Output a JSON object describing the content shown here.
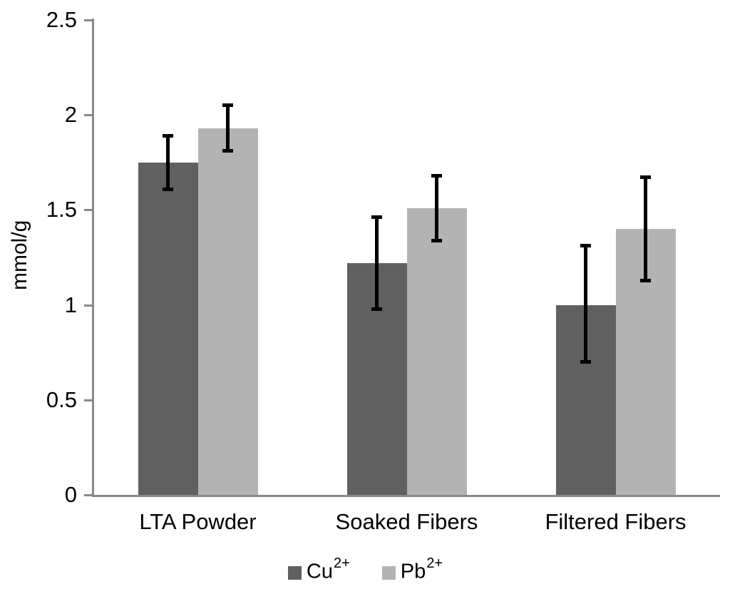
{
  "chart_data": {
    "type": "bar",
    "title": "",
    "xlabel": "",
    "ylabel": "mmol/g",
    "ylim": [
      0,
      2.5
    ],
    "y_ticks": [
      0,
      0.5,
      1,
      1.5,
      2,
      2.5
    ],
    "grid": false,
    "legend_position": "bottom",
    "categories": [
      "LTA Powder",
      "Soaked Fibers",
      "Filtered Fibers"
    ],
    "series": [
      {
        "name": "Cu",
        "superscript": "2+",
        "color": "#606060",
        "values": [
          1.75,
          1.22,
          1.0
        ],
        "error_low": [
          1.6,
          0.97,
          0.69
        ],
        "error_high": [
          1.9,
          1.47,
          1.32
        ]
      },
      {
        "name": "Pb",
        "superscript": "2+",
        "color": "#B3B3B3",
        "values": [
          1.93,
          1.51,
          1.4
        ],
        "error_low": [
          1.8,
          1.33,
          1.12
        ],
        "error_high": [
          2.06,
          1.69,
          1.68
        ]
      }
    ],
    "error_bar_color": "#000000",
    "axis_color": "#898989",
    "text_color": "#000000"
  }
}
